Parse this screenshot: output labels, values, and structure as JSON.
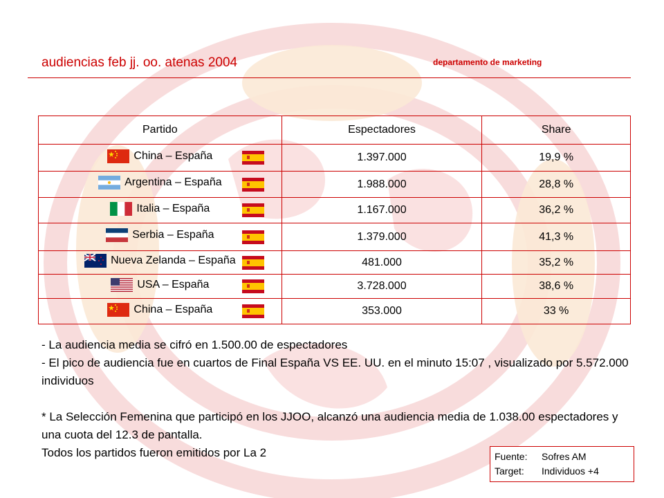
{
  "header": {
    "title": "audiencias feb jj. oo. atenas 2004",
    "department": "departamento de marketing"
  },
  "table": {
    "headers": [
      "Partido",
      "Espectadores",
      "Share"
    ],
    "rows": [
      {
        "match": "China – España",
        "home_flag": "china-flag-icon",
        "away_flag": "spain-flag-icon",
        "viewers": "1.397.000",
        "share": "19,9 %"
      },
      {
        "match": "Argentina – España",
        "home_flag": "argentina-flag-icon",
        "away_flag": "spain-flag-icon",
        "viewers": "1.988.000",
        "share": "28,8 %"
      },
      {
        "match": "Italia – España",
        "home_flag": "italy-flag-icon",
        "away_flag": "spain-flag-icon",
        "viewers": "1.167.000",
        "share": "36,2 %"
      },
      {
        "match": "Serbia – España",
        "home_flag": "serbia-flag-icon",
        "away_flag": "spain-flag-icon",
        "viewers": "1.379.000",
        "share": "41,3 %"
      },
      {
        "match": "Nueva Zelanda – España",
        "home_flag": "new-zealand-flag-icon",
        "away_flag": "spain-flag-icon",
        "viewers": "481.000",
        "share": "35,2 %"
      },
      {
        "match": "USA – España",
        "home_flag": "usa-flag-icon",
        "away_flag": "spain-flag-icon",
        "viewers": "3.728.000",
        "share": "38,6 %"
      },
      {
        "match": "China – España",
        "home_flag": "china-flag-icon",
        "away_flag": "spain-flag-icon",
        "viewers": "353.000",
        "share": "33 %"
      }
    ]
  },
  "notes": {
    "line1": "- La audiencia media se cifró en 1.500.00 de espectadores",
    "line2": "- El pico de audiencia fue en cuartos de Final España VS EE. UU. en el minuto 15:07 , visualizado por 5.572.000 individuos",
    "line3": "* La Selección Femenina que participó en los JJOO, alcanzó una audiencia media de 1.038.00 espectadores y una cuota del 12.3 de pantalla.",
    "line4": "Todos los partidos fueron emitidos por La 2"
  },
  "source": {
    "fuente_label": "Fuente:",
    "fuente_value": "Sofres AM",
    "target_label": "Target:",
    "target_value": "Individuos +4"
  },
  "colors": {
    "accent": "#cc0000",
    "watermark": "#f6d2d2"
  }
}
